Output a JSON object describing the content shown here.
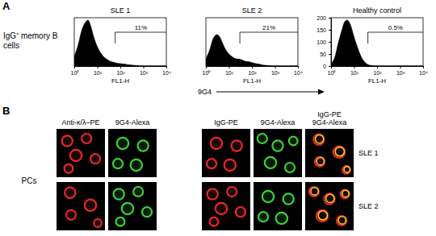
{
  "chart_data": [
    {
      "type": "area",
      "title": "SLE 1",
      "xlabel": "FL1-H",
      "color": "#000000",
      "log": "x",
      "x": [
        1,
        1.5,
        2,
        3,
        4,
        5,
        7,
        10,
        15,
        20,
        30,
        40,
        50,
        70,
        100,
        150,
        200,
        300,
        500,
        1000,
        10000
      ],
      "values": [
        20,
        45,
        70,
        90,
        95,
        85,
        60,
        40,
        25,
        18,
        12,
        9,
        8,
        6,
        5,
        4,
        3,
        2,
        1,
        0,
        0
      ],
      "xlim": [
        1,
        10000
      ],
      "xticks": [
        {
          "value": 1,
          "label": "10⁰"
        },
        {
          "value": 10,
          "label": "10¹"
        },
        {
          "value": 100,
          "label": "10²"
        },
        {
          "value": 1000,
          "label": "10³"
        },
        {
          "value": 10000,
          "label": "10⁴"
        }
      ],
      "ylim": [
        0,
        100
      ],
      "tick_labels": "x",
      "annotations": [
        {
          "text": "11%",
          "x": [
            60,
            10000
          ]
        }
      ]
    },
    {
      "type": "area",
      "title": "SLE 2",
      "xlabel": "FL1-H",
      "color": "#000000",
      "log": "x",
      "x": [
        1,
        1.5,
        2,
        3,
        4,
        5,
        7,
        10,
        15,
        20,
        30,
        40,
        50,
        70,
        100,
        150,
        200,
        300,
        500,
        1000,
        10000
      ],
      "values": [
        15,
        35,
        55,
        65,
        60,
        50,
        35,
        25,
        18,
        15,
        14,
        12,
        10,
        9,
        7,
        5,
        4,
        2,
        1,
        0,
        0
      ],
      "xlim": [
        1,
        10000
      ],
      "xticks": [
        {
          "value": 1,
          "label": "10⁰"
        },
        {
          "value": 10,
          "label": "10¹"
        },
        {
          "value": 100,
          "label": "10²"
        },
        {
          "value": 1000,
          "label": "10³"
        },
        {
          "value": 10000,
          "label": "10⁴"
        }
      ],
      "ylim": [
        0,
        100
      ],
      "tick_labels": "x",
      "annotations": [
        {
          "text": "21%",
          "x": [
            30,
            10000
          ]
        }
      ]
    },
    {
      "type": "area",
      "title": "Healthy control",
      "xlabel": "FL1-H",
      "color": "#000000",
      "log": "x",
      "x": [
        1,
        1.5,
        2,
        3,
        4,
        5,
        7,
        10,
        15,
        20,
        30,
        40,
        50,
        70,
        100,
        150,
        200,
        300,
        500,
        1000,
        10000
      ],
      "values": [
        10,
        40,
        90,
        150,
        185,
        190,
        170,
        120,
        70,
        40,
        15,
        6,
        3,
        1,
        0,
        0,
        0,
        0,
        0,
        0,
        0
      ],
      "xlim": [
        1,
        10000
      ],
      "xticks": [
        {
          "value": 1,
          "label": "10⁰"
        },
        {
          "value": 10,
          "label": "10¹"
        },
        {
          "value": 100,
          "label": "10²"
        },
        {
          "value": 1000,
          "label": "10³"
        },
        {
          "value": 10000,
          "label": "10⁴"
        }
      ],
      "ylim": [
        0,
        200
      ],
      "yticks": [
        0,
        50,
        100,
        150,
        200
      ],
      "annotations": [
        {
          "text": "0.5%",
          "x": [
            40,
            10000
          ]
        }
      ]
    }
  ],
  "panels": {
    "A": {
      "letter": "A",
      "row_label": "IgG⁺ memory B cells",
      "axis_label": "9G4"
    },
    "B": {
      "letter": "B",
      "row_label": "PCs",
      "groups": [
        [
          "Anti-κ/λ–PE",
          "9G4-Alexa"
        ],
        [
          "IgG-PE",
          "9G4-Alexa",
          "IgG-PE 9G4-Alexa"
        ]
      ],
      "rows": [
        "SLE 1",
        "SLE 2"
      ]
    }
  }
}
